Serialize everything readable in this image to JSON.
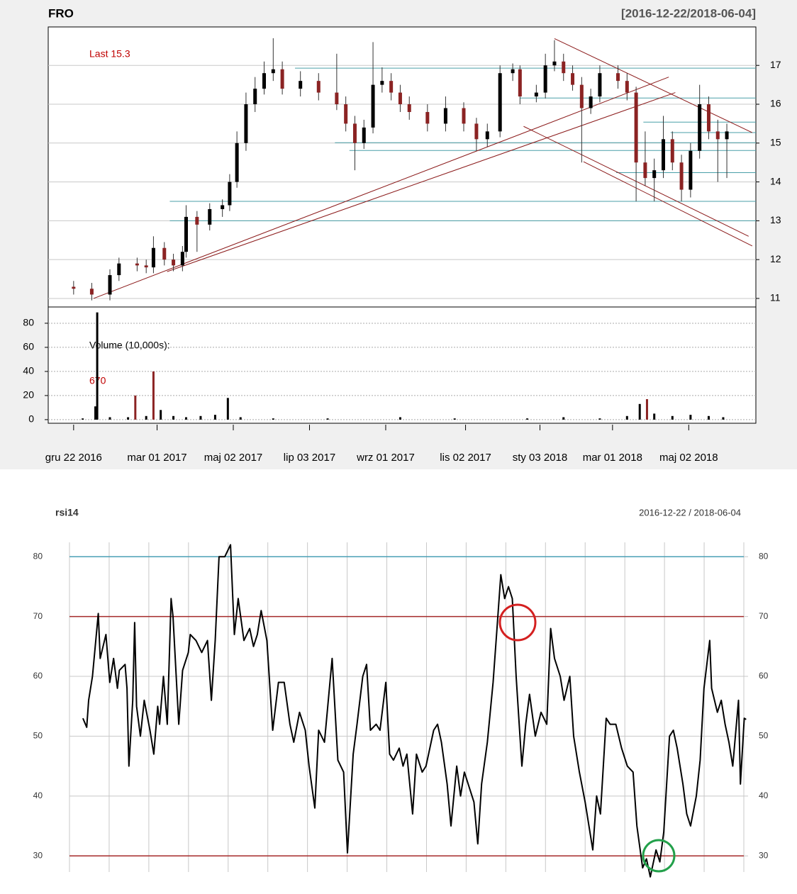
{
  "chart_data": [
    {
      "type": "candlestick",
      "title": "FRO",
      "subtitle": "[2016-12-22/2018-06-04]",
      "last_label": "Last 15.3",
      "xlim": [
        -14,
        376
      ],
      "ylim": [
        10.78,
        17.99
      ],
      "yticks": [
        11,
        12,
        13,
        14,
        15,
        16,
        17
      ],
      "grid": true,
      "up_color": "#000000",
      "down_color": "#8b2323",
      "x": [
        0,
        10,
        20,
        25,
        35,
        40,
        44,
        50,
        55,
        60,
        62,
        68,
        75,
        82,
        86,
        90,
        95,
        100,
        105,
        110,
        115,
        125,
        135,
        145,
        150,
        155,
        160,
        165,
        170,
        175,
        180,
        185,
        195,
        205,
        215,
        222,
        228,
        235,
        242,
        246,
        255,
        260,
        265,
        270,
        275,
        280,
        285,
        290,
        300,
        305,
        310,
        315,
        320,
        325,
        330,
        335,
        340,
        345,
        350,
        355,
        360
      ],
      "open": [
        11.3,
        11.25,
        11.1,
        11.6,
        11.9,
        11.85,
        11.8,
        12.3,
        12.0,
        11.85,
        12.2,
        13.1,
        12.9,
        13.3,
        13.4,
        14.0,
        15.0,
        16.0,
        16.4,
        16.8,
        16.9,
        16.4,
        16.6,
        16.3,
        16.0,
        15.5,
        15.0,
        15.4,
        16.5,
        16.6,
        16.3,
        16.0,
        15.8,
        15.5,
        15.9,
        15.5,
        15.1,
        15.3,
        16.8,
        16.9,
        16.2,
        16.3,
        17.0,
        17.1,
        16.8,
        16.5,
        15.9,
        16.2,
        16.8,
        16.6,
        16.3,
        14.5,
        14.1,
        14.3,
        15.1,
        14.5,
        13.8,
        14.8,
        16.0,
        15.3,
        15.1
      ],
      "high": [
        11.45,
        11.4,
        11.75,
        12.05,
        12.05,
        12.0,
        12.6,
        12.45,
        12.15,
        12.35,
        13.4,
        13.25,
        13.45,
        13.55,
        14.2,
        15.3,
        16.3,
        16.7,
        17.1,
        17.7,
        17.1,
        16.85,
        16.8,
        17.3,
        16.2,
        15.7,
        15.6,
        17.6,
        16.95,
        16.8,
        16.5,
        16.2,
        16.0,
        16.2,
        16.05,
        15.65,
        15.5,
        17.0,
        17.05,
        17.0,
        16.5,
        17.3,
        17.65,
        17.3,
        17.0,
        16.7,
        16.4,
        17.0,
        17.0,
        16.8,
        16.45,
        15.3,
        14.6,
        15.7,
        15.3,
        14.7,
        15.0,
        16.5,
        16.2,
        15.6,
        15.5
      ],
      "low": [
        11.1,
        10.95,
        10.95,
        11.45,
        11.7,
        11.65,
        11.65,
        11.85,
        11.7,
        11.7,
        12.05,
        12.2,
        12.75,
        13.1,
        13.25,
        13.85,
        14.8,
        15.8,
        16.25,
        16.6,
        16.25,
        16.2,
        16.1,
        15.85,
        15.3,
        14.3,
        14.85,
        15.25,
        16.3,
        16.1,
        15.8,
        15.6,
        15.3,
        15.3,
        15.3,
        14.8,
        14.9,
        15.15,
        16.6,
        16.0,
        16.05,
        16.15,
        16.85,
        16.6,
        16.35,
        14.5,
        15.75,
        16.05,
        16.4,
        16.1,
        13.5,
        13.9,
        13.5,
        14.1,
        14.3,
        13.5,
        13.6,
        14.6,
        15.1,
        14.0,
        14.1
      ],
      "close": [
        11.25,
        11.1,
        11.6,
        11.9,
        11.85,
        11.8,
        12.3,
        12.0,
        11.85,
        12.2,
        13.1,
        12.9,
        13.3,
        13.4,
        14.0,
        15.0,
        16.0,
        16.4,
        16.8,
        16.9,
        16.4,
        16.6,
        16.3,
        16.0,
        15.5,
        15.0,
        15.4,
        16.5,
        16.6,
        16.3,
        16.0,
        15.8,
        15.5,
        15.9,
        15.5,
        15.1,
        15.3,
        16.8,
        16.9,
        16.2,
        16.3,
        17.0,
        17.1,
        16.8,
        16.5,
        15.9,
        16.2,
        16.8,
        16.6,
        16.3,
        14.5,
        14.1,
        14.3,
        15.1,
        14.5,
        13.8,
        14.8,
        16.0,
        15.3,
        15.1,
        15.3
      ],
      "level_color": "#4a9fa8",
      "levels": [
        {
          "value": 16.93,
          "from": 122
        },
        {
          "value": 16.16,
          "from": 246
        },
        {
          "value": 15.54,
          "from": 314
        },
        {
          "value": 15.27,
          "from": 329
        },
        {
          "value": 15.01,
          "from": 144
        },
        {
          "value": 14.81,
          "from": 152
        },
        {
          "value": 14.24,
          "from": 299
        },
        {
          "value": 13.5,
          "from": 53
        },
        {
          "value": 13.0,
          "from": 53
        }
      ],
      "trend_color": "#8b1a1a",
      "trendlines": [
        {
          "x": [
            11,
            328
          ],
          "y": [
            11.0,
            16.7
          ]
        },
        {
          "x": [
            51.5,
            331.6
          ],
          "y": [
            11.69,
            16.3
          ]
        },
        {
          "x": [
            265,
            374
          ],
          "y": [
            17.69,
            15.27
          ]
        },
        {
          "x": [
            248,
            372
          ],
          "y": [
            15.43,
            12.6
          ]
        },
        {
          "x": [
            281,
            374
          ],
          "y": [
            14.52,
            12.35
          ]
        }
      ]
    },
    {
      "type": "bar",
      "label": "Volume (10,000s):",
      "last_label": "670",
      "xlim": [
        -14,
        376
      ],
      "ylim": [
        -3,
        93.5
      ],
      "yticks": [
        0,
        20,
        40,
        60,
        80
      ],
      "grid": true,
      "xticks": [
        {
          "value": 0,
          "label": "gru 22 2016"
        },
        {
          "value": 46,
          "label": "mar 01 2017"
        },
        {
          "value": 88,
          "label": "maj 02 2017"
        },
        {
          "value": 130,
          "label": "lip 03 2017"
        },
        {
          "value": 172,
          "label": "wrz 01 2017"
        },
        {
          "value": 216,
          "label": "lis 02 2017"
        },
        {
          "value": 257,
          "label": "sty 03 2018"
        },
        {
          "value": 297,
          "label": "mar 01 2018"
        },
        {
          "value": 339,
          "label": "maj 02 2018"
        }
      ],
      "x": [
        5,
        12,
        13,
        20,
        30,
        34,
        40,
        44,
        48,
        55,
        62,
        70,
        78,
        85,
        92,
        110,
        140,
        180,
        210,
        250,
        270,
        290,
        305,
        312,
        316,
        320,
        330,
        340,
        350,
        358
      ],
      "values": [
        1,
        11,
        89,
        2,
        2,
        20,
        3,
        40,
        8,
        3,
        2,
        3,
        4,
        18,
        2,
        1,
        1,
        2,
        1,
        1,
        2,
        1,
        3,
        13,
        17,
        5,
        3,
        4,
        3,
        2
      ],
      "colors": [
        "#000000",
        "#000000",
        "#000000",
        "#000000",
        "#000000",
        "#8b2323",
        "#000000",
        "#8b2323",
        "#000000",
        "#000000",
        "#000000",
        "#000000",
        "#000000",
        "#000000",
        "#000000",
        "#000000",
        "#000000",
        "#000000",
        "#000000",
        "#000000",
        "#000000",
        "#000000",
        "#000000",
        "#000000",
        "#8b2323",
        "#000000",
        "#000000",
        "#000000",
        "#000000",
        "#000000"
      ]
    },
    {
      "type": "line",
      "title": "rsi14",
      "subtitle": "2016-12-22 / 2018-06-04",
      "xlim": [
        7,
        361
      ],
      "ylim": [
        27.3,
        82.4
      ],
      "yticks": [
        30,
        40,
        50,
        60,
        70,
        80
      ],
      "grid": true,
      "hlines": [
        {
          "value": 80,
          "color": "#4a9fb5"
        },
        {
          "value": 70,
          "color": "#a52a2a"
        },
        {
          "value": 30,
          "color": "#a52a2a"
        }
      ],
      "x": [
        14,
        16,
        17,
        19,
        22,
        23,
        26,
        28,
        30,
        32,
        33,
        36,
        37,
        38,
        40,
        41,
        42,
        44,
        46,
        49,
        51,
        53,
        54,
        56,
        58,
        60,
        61,
        64,
        66,
        69,
        70,
        73,
        76,
        79,
        81,
        83,
        85,
        88,
        91,
        93,
        95,
        98,
        101,
        103,
        105,
        107,
        110,
        113,
        116,
        119,
        122,
        124,
        127,
        130,
        132,
        135,
        137,
        140,
        142,
        144,
        147,
        150,
        152,
        155,
        157,
        160,
        162,
        164,
        167,
        169,
        172,
        174,
        176,
        179,
        181,
        183,
        186,
        188,
        191,
        193,
        195,
        197,
        199,
        201,
        204,
        206,
        209,
        211,
        213,
        216,
        218,
        220,
        222,
        225,
        228,
        230,
        232,
        234,
        236,
        238,
        240,
        243,
        245,
        247,
        250,
        253,
        256,
        258,
        260,
        263,
        265,
        268,
        270,
        273,
        276,
        280,
        282,
        284,
        287,
        289,
        292,
        295,
        298,
        301,
        303,
        306,
        308,
        310,
        313,
        315,
        317,
        320,
        322,
        324,
        327,
        329,
        331,
        334,
        336,
        338,
        341,
        342,
        345,
        347,
        349,
        351,
        353,
        356,
        357,
        359,
        360
      ],
      "series": [
        {
          "name": "rsi14",
          "color": "#000000",
          "values": [
            53,
            51.5,
            56,
            60,
            70.5,
            63,
            67,
            59,
            63,
            58,
            61,
            62,
            58,
            45,
            56,
            69,
            55,
            50,
            56,
            51,
            47,
            55,
            52,
            60,
            52,
            73,
            70,
            52,
            61,
            64,
            67,
            66,
            64,
            66,
            56,
            66,
            80,
            80,
            82,
            67,
            73,
            66,
            68,
            65,
            67,
            71,
            66,
            51,
            59,
            59,
            52,
            49,
            54,
            51,
            45,
            38,
            51,
            49,
            56,
            63,
            46,
            44,
            30.5,
            47,
            52,
            60,
            62,
            51,
            52,
            51,
            59,
            47,
            46,
            48,
            45,
            47,
            37,
            47,
            44,
            45,
            48,
            51,
            52,
            49,
            42,
            35,
            45,
            40,
            44,
            41,
            39,
            32,
            42,
            49,
            59,
            68,
            77,
            73,
            75,
            73,
            60,
            45,
            52,
            57,
            50,
            54,
            52,
            68,
            63,
            60,
            56,
            60,
            50,
            44,
            39,
            31,
            40,
            37,
            53,
            52,
            52,
            48,
            45,
            44,
            35,
            28,
            29.5,
            26.5,
            31,
            29,
            34,
            50,
            51,
            48,
            42,
            37,
            35,
            40,
            46,
            58,
            66,
            58,
            54,
            56,
            52,
            49,
            45,
            56,
            42,
            53,
            52.8
          ]
        }
      ]
    }
  ]
}
